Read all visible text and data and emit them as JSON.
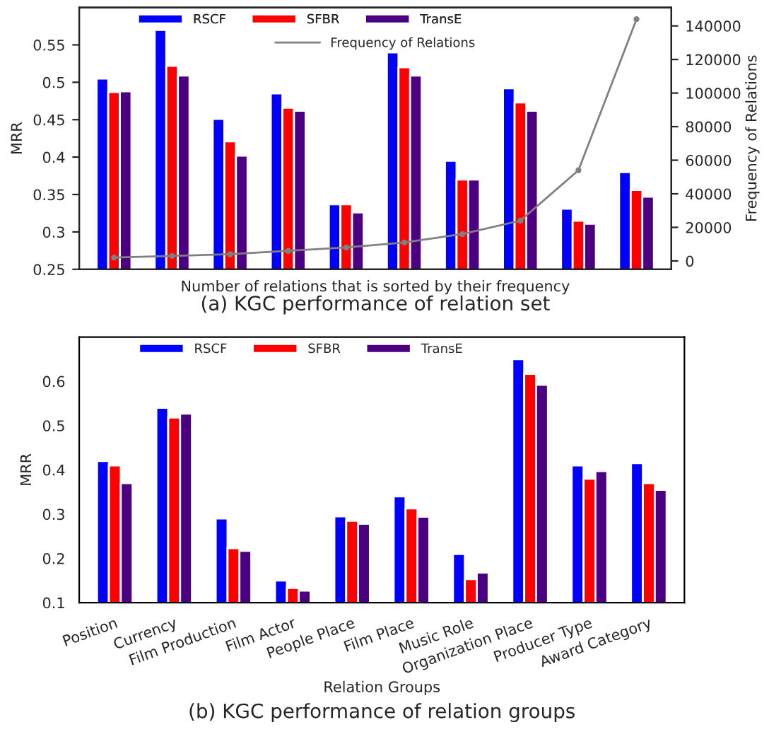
{
  "chart_data": [
    {
      "type": "bar",
      "title": "(a) KGC performance of relation set",
      "xlabel": "Number of relations that is sorted by their frequency",
      "ylabel": "MRR",
      "y2label": "Frequency of Relations",
      "categories": [
        null,
        null,
        null,
        null,
        null,
        null,
        null,
        null,
        null,
        null
      ],
      "series": [
        {
          "name": "RSCF",
          "color": "#0000ff",
          "values": [
            0.505,
            0.57,
            0.451,
            0.485,
            0.337,
            0.54,
            0.395,
            0.492,
            0.331,
            0.38
          ]
        },
        {
          "name": "SFBR",
          "color": "#ff0000",
          "values": [
            0.487,
            0.522,
            0.421,
            0.466,
            0.337,
            0.52,
            0.37,
            0.473,
            0.315,
            0.356
          ]
        },
        {
          "name": "TransE",
          "color": "#4b0082",
          "values": [
            0.488,
            0.509,
            0.402,
            0.462,
            0.326,
            0.509,
            0.37,
            0.462,
            0.311,
            0.347
          ]
        },
        {
          "name": "Frequency of Relations",
          "type": "line",
          "axis": "y2",
          "color": "#808080",
          "marker": "circle",
          "values": [
            2000,
            3000,
            4000,
            6000,
            8000,
            11000,
            16000,
            24000,
            54000,
            144000
          ]
        }
      ],
      "ylim": [
        0.25,
        0.6
      ],
      "yticks": [
        0.25,
        0.3,
        0.35,
        0.4,
        0.45,
        0.5,
        0.55
      ],
      "y2lim": [
        -5000,
        151000
      ],
      "y2ticks": [
        0,
        20000,
        40000,
        60000,
        80000,
        100000,
        120000,
        140000
      ],
      "tick_labels": "y",
      "legend": "top",
      "grid": false
    },
    {
      "type": "bar",
      "title": "(b) KGC performance of relation groups",
      "xlabel": "Relation Groups",
      "ylabel": "MRR",
      "categories": [
        "Position",
        "Currency",
        "Film Production",
        "Film Actor",
        "People Place",
        "Film Place",
        "Music Role",
        "Organization Place",
        "Producer Type",
        "Award Category"
      ],
      "series": [
        {
          "name": "RSCF",
          "color": "#0000ff",
          "values": [
            0.42,
            0.54,
            0.29,
            0.15,
            0.295,
            0.34,
            0.21,
            0.65,
            0.41,
            0.415
          ]
        },
        {
          "name": "SFBR",
          "color": "#ff0000",
          "values": [
            0.41,
            0.518,
            0.223,
            0.133,
            0.285,
            0.313,
            0.153,
            0.617,
            0.38,
            0.37
          ]
        },
        {
          "name": "TransE",
          "color": "#4b0082",
          "values": [
            0.37,
            0.527,
            0.217,
            0.127,
            0.278,
            0.294,
            0.168,
            0.592,
            0.397,
            0.355
          ]
        }
      ],
      "ylim": [
        0.1,
        0.7
      ],
      "yticks": [
        0.1,
        0.2,
        0.3,
        0.4,
        0.5,
        0.6
      ],
      "legend": "top",
      "grid": false
    }
  ]
}
